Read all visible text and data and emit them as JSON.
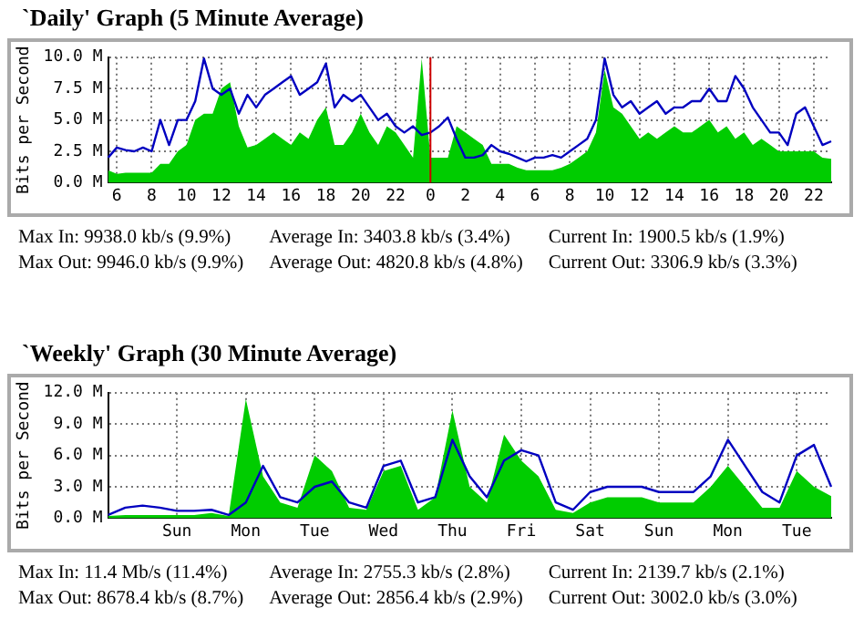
{
  "chart_data": [
    {
      "type": "line",
      "title": "`Daily' Graph (5 Minute Average)",
      "ylabel": "Bits per Second",
      "categories": [
        null,
        "6",
        null,
        null,
        null,
        "8",
        null,
        null,
        null,
        "10",
        null,
        null,
        null,
        "12",
        null,
        null,
        null,
        "14",
        null,
        null,
        null,
        "16",
        null,
        null,
        null,
        "18",
        null,
        null,
        null,
        "20",
        null,
        null,
        null,
        "22",
        null,
        null,
        null,
        "0",
        null,
        null,
        null,
        "2",
        null,
        null,
        null,
        "4",
        null,
        null,
        null,
        "6",
        null,
        null,
        null,
        "8",
        null,
        null,
        null,
        "10",
        null,
        null,
        null,
        "12",
        null,
        null,
        null,
        "14",
        null,
        null,
        null,
        "16",
        null,
        null,
        null,
        "18",
        null,
        null,
        null,
        "20",
        null,
        null,
        null,
        "22",
        null,
        null
      ],
      "series": [
        {
          "type": "area",
          "color": "#00cc00",
          "values": [
            1.0,
            0.7,
            0.8,
            0.8,
            0.8,
            0.8,
            1.5,
            1.5,
            2.5,
            3.0,
            5.0,
            5.5,
            5.5,
            7.5,
            8.0,
            4.5,
            2.8,
            3.0,
            3.5,
            4.0,
            3.5,
            3.0,
            4.0,
            3.5,
            5.0,
            6.0,
            3.0,
            3.0,
            4.0,
            5.5,
            4.0,
            3.0,
            4.5,
            4.0,
            3.0,
            2.0,
            9.9,
            2.0,
            2.0,
            2.0,
            4.5,
            4.0,
            3.5,
            3.0,
            1.5,
            1.5,
            1.5,
            1.2,
            1.0,
            1.0,
            1.0,
            1.0,
            1.2,
            1.5,
            2.0,
            2.5,
            4.0,
            9.0,
            6.0,
            5.5,
            4.5,
            3.5,
            4.0,
            3.5,
            4.0,
            4.5,
            4.0,
            4.0,
            4.5,
            5.0,
            4.0,
            4.5,
            3.5,
            4.0,
            3.0,
            3.5,
            3.0,
            2.5,
            2.5,
            2.5,
            2.5,
            2.5,
            2.0,
            1.9
          ]
        },
        {
          "type": "line",
          "color": "#0000c0",
          "values": [
            2.0,
            2.8,
            2.6,
            2.5,
            2.8,
            2.5,
            5.0,
            3.0,
            5.0,
            5.0,
            6.5,
            9.9,
            7.5,
            7.0,
            7.5,
            5.5,
            7.0,
            6.0,
            7.0,
            7.5,
            8.0,
            8.5,
            7.0,
            7.5,
            8.0,
            9.5,
            6.0,
            7.0,
            6.5,
            7.0,
            6.0,
            5.0,
            5.5,
            4.5,
            4.0,
            4.5,
            3.8,
            4.0,
            4.5,
            5.2,
            3.5,
            2.0,
            2.0,
            2.2,
            3.0,
            2.5,
            2.3,
            2.0,
            1.7,
            2.0,
            2.0,
            2.2,
            2.0,
            2.5,
            3.0,
            3.5,
            5.0,
            9.9,
            7.0,
            6.0,
            6.5,
            5.5,
            6.0,
            6.5,
            5.5,
            6.0,
            6.0,
            6.5,
            6.5,
            7.5,
            6.5,
            6.5,
            8.5,
            7.5,
            6.0,
            5.0,
            4.0,
            4.0,
            3.0,
            5.5,
            6.0,
            4.5,
            3.0,
            3.3
          ]
        }
      ],
      "ylim": [
        0,
        10
      ],
      "yticks": [
        {
          "value": 0,
          "label": "0.0 M"
        },
        {
          "value": 2.5,
          "label": "2.5 M"
        },
        {
          "value": 5,
          "label": "5.0 M"
        },
        {
          "value": 7.5,
          "label": "7.5 M"
        },
        {
          "value": 10,
          "label": "10.0 M"
        }
      ],
      "grid": true,
      "ref_lines": [
        {
          "axis": "x",
          "value": "0",
          "color": "#cc0000"
        }
      ],
      "annotations": [
        "Max In: 9938.0 kb/s (9.9%)",
        "Average In: 3403.8 kb/s (3.4%)",
        "Current In: 1900.5 kb/s (1.9%)",
        "Max Out: 9946.0 kb/s (9.9%)",
        "Average Out: 4820.8 kb/s (4.8%)",
        "Current Out: 3306.9 kb/s (3.3%)"
      ]
    },
    {
      "type": "line",
      "title": "`Weekly' Graph (30 Minute Average)",
      "ylabel": "Bits per Second",
      "categories": [
        null,
        null,
        null,
        null,
        "Sun",
        null,
        null,
        null,
        "Mon",
        null,
        null,
        null,
        "Tue",
        null,
        null,
        null,
        "Wed",
        null,
        null,
        null,
        "Thu",
        null,
        null,
        null,
        "Fri",
        null,
        null,
        null,
        "Sat",
        null,
        null,
        null,
        "Sun",
        null,
        null,
        null,
        "Mon",
        null,
        null,
        null,
        "Tue",
        null,
        null
      ],
      "series": [
        {
          "type": "area",
          "color": "#00cc00",
          "values": [
            0.2,
            0.3,
            0.3,
            0.3,
            0.3,
            0.3,
            0.5,
            0.2,
            11.4,
            4.0,
            1.5,
            1.0,
            6.0,
            4.5,
            1.0,
            0.8,
            4.5,
            5.0,
            0.8,
            2.0,
            10.3,
            3.0,
            1.5,
            8.0,
            5.5,
            4.0,
            0.8,
            0.5,
            1.5,
            2.0,
            2.0,
            2.0,
            1.5,
            1.5,
            1.5,
            3.0,
            5.0,
            3.0,
            1.0,
            1.0,
            4.5,
            3.0,
            2.1
          ]
        },
        {
          "type": "line",
          "color": "#0000c0",
          "values": [
            0.3,
            1.0,
            1.2,
            1.0,
            0.7,
            0.7,
            0.8,
            0.3,
            1.5,
            5.0,
            2.0,
            1.5,
            3.0,
            3.5,
            1.5,
            1.0,
            5.0,
            5.5,
            1.5,
            2.0,
            7.5,
            4.0,
            2.0,
            5.5,
            6.5,
            6.0,
            1.5,
            0.8,
            2.5,
            3.0,
            3.0,
            3.0,
            2.5,
            2.5,
            2.5,
            4.0,
            7.5,
            5.0,
            2.5,
            1.5,
            6.0,
            7.0,
            3.0
          ]
        }
      ],
      "ylim": [
        0,
        12
      ],
      "yticks": [
        {
          "value": 0,
          "label": "0.0 M"
        },
        {
          "value": 3,
          "label": "3.0 M"
        },
        {
          "value": 6,
          "label": "6.0 M"
        },
        {
          "value": 9,
          "label": "9.0 M"
        },
        {
          "value": 12,
          "label": "12.0 M"
        }
      ],
      "grid": true,
      "annotations": [
        "Max In: 11.4 Mb/s (11.4%)",
        "Average In: 2755.3 kb/s (2.8%)",
        "Current In: 2139.7 kb/s (2.1%)",
        "Max Out: 8678.4 kb/s (8.7%)",
        "Average Out: 2856.4 kb/s (2.9%)",
        "Current Out: 3002.0 kb/s (3.0%)"
      ]
    }
  ]
}
